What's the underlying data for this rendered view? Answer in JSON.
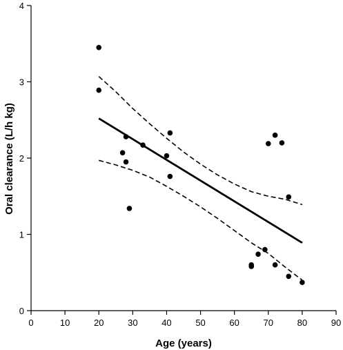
{
  "chart_data": {
    "type": "scatter",
    "title": "",
    "xlabel": "Age (years)",
    "ylabel": "Oral clearance (L/h kg)",
    "xlim": [
      0,
      90
    ],
    "ylim": [
      0,
      4
    ],
    "xticks": [
      0,
      10,
      20,
      30,
      40,
      50,
      60,
      70,
      80,
      90
    ],
    "yticks": [
      0,
      1,
      2,
      3,
      4
    ],
    "grid": false,
    "points": [
      {
        "x": 20,
        "y": 3.45
      },
      {
        "x": 20,
        "y": 2.89
      },
      {
        "x": 27,
        "y": 2.07
      },
      {
        "x": 28,
        "y": 2.28
      },
      {
        "x": 28,
        "y": 1.95
      },
      {
        "x": 29,
        "y": 1.34
      },
      {
        "x": 33,
        "y": 2.17
      },
      {
        "x": 40,
        "y": 2.03
      },
      {
        "x": 41,
        "y": 2.33
      },
      {
        "x": 41,
        "y": 1.76
      },
      {
        "x": 65,
        "y": 0.6
      },
      {
        "x": 65,
        "y": 0.58
      },
      {
        "x": 67,
        "y": 0.74
      },
      {
        "x": 69,
        "y": 0.8
      },
      {
        "x": 70,
        "y": 2.19
      },
      {
        "x": 72,
        "y": 2.3
      },
      {
        "x": 72,
        "y": 0.6
      },
      {
        "x": 74,
        "y": 2.2
      },
      {
        "x": 76,
        "y": 1.49
      },
      {
        "x": 76,
        "y": 0.45
      },
      {
        "x": 80,
        "y": 0.37
      }
    ],
    "regression_line": {
      "x": [
        20,
        80
      ],
      "y": [
        2.52,
        0.89
      ]
    },
    "confidence_upper": {
      "x": [
        20,
        25,
        30,
        35,
        40,
        45,
        50,
        55,
        60,
        65,
        70,
        75,
        80
      ],
      "y": [
        3.07,
        2.87,
        2.65,
        2.45,
        2.26,
        2.08,
        1.92,
        1.78,
        1.66,
        1.56,
        1.5,
        1.46,
        1.39
      ]
    },
    "confidence_lower": {
      "x": [
        20,
        25,
        30,
        35,
        40,
        45,
        50,
        55,
        60,
        65,
        70,
        75,
        80
      ],
      "y": [
        1.97,
        1.91,
        1.84,
        1.75,
        1.63,
        1.5,
        1.36,
        1.21,
        1.05,
        0.89,
        0.75,
        0.57,
        0.4
      ]
    }
  }
}
